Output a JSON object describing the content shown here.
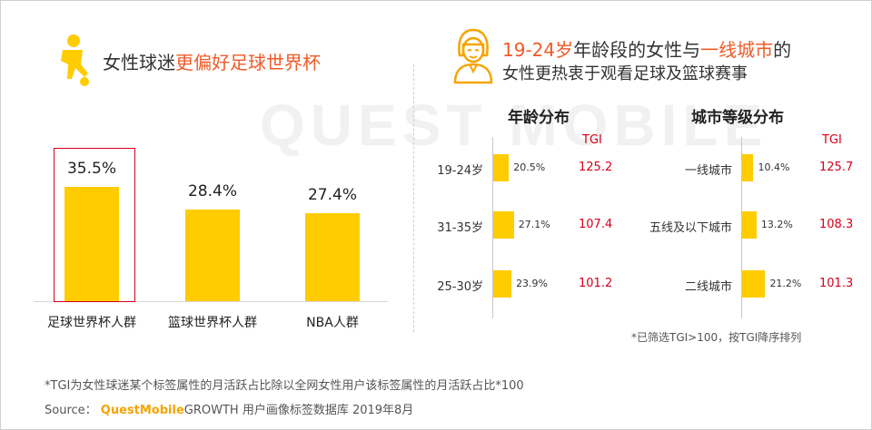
{
  "watermark": "QUEST MOBILE",
  "left_title": {
    "normal": "女性球迷",
    "highlight": "更偏好足球世界杯"
  },
  "right_title": {
    "line1_highlight1": "19-24岁",
    "line1_mid": "年龄段的女性与",
    "line1_highlight2": "一线城市",
    "line1_end": "的",
    "line2": "女性更热衷于观看足球及篮球赛事"
  },
  "age_block": {
    "title": "年龄分布",
    "tgi_label": "TGI"
  },
  "city_block": {
    "title": "城市等级分布",
    "tgi_label": "TGI"
  },
  "filter_note": "*已筛选TGI>100，按TGI降序排列",
  "footnote": "*TGI为女性球迷某个标签属性的月活跃占比除以全网女性用户该标签属性的月活跃占比*100",
  "source": {
    "label": "Source：",
    "brand": "QuestMobile",
    "text": "GROWTH 用户画像标签数据库 2019年8月"
  },
  "colors": {
    "bar": "#ffcc00",
    "accent": "#f05a28",
    "tgi": "#d6001c"
  },
  "icons": {
    "left": "football-player-icon",
    "right": "woman-avatar-icon"
  },
  "chart_data": [
    {
      "type": "bar",
      "categories": [
        "足球世界杯人群",
        "篮球世界杯人群",
        "NBA人群"
      ],
      "values": [
        35.5,
        28.4,
        27.4
      ],
      "value_labels": [
        "35.5%",
        "28.4%",
        "27.4%"
      ],
      "highlighted_category": "足球世界杯人群",
      "ylim": [
        0,
        40
      ]
    },
    {
      "type": "bar",
      "orientation": "horizontal",
      "title": "年龄分布",
      "categories": [
        "19-24岁",
        "31-35岁",
        "25-30岁"
      ],
      "values": [
        20.5,
        27.1,
        23.9
      ],
      "value_labels": [
        "20.5%",
        "27.1%",
        "23.9%"
      ],
      "tgi": [
        "125.2",
        "107.4",
        "101.2"
      ]
    },
    {
      "type": "bar",
      "orientation": "horizontal",
      "title": "城市等级分布",
      "categories": [
        "一线城市",
        "五线及以下城市",
        "二线城市"
      ],
      "values": [
        10.4,
        13.2,
        21.2
      ],
      "value_labels": [
        "10.4%",
        "13.2%",
        "21.2%"
      ],
      "tgi": [
        "125.7",
        "108.3",
        "101.3"
      ]
    }
  ]
}
